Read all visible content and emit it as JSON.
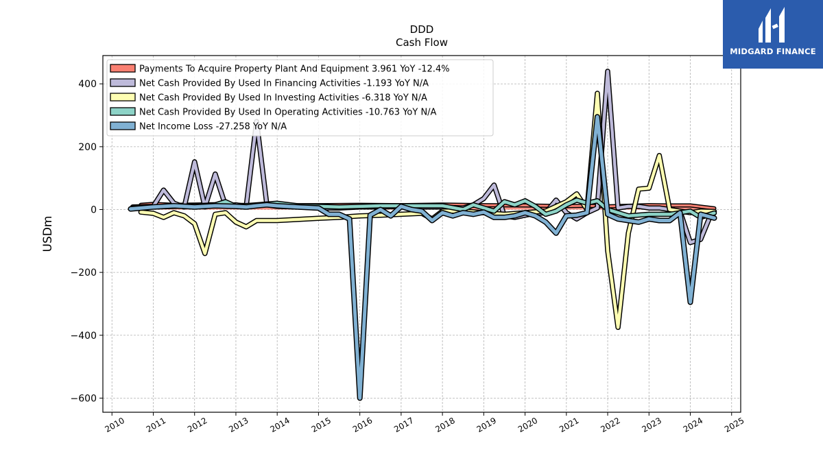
{
  "logo": {
    "name": "MIDGARD FINANCE",
    "bg": "#2b5cad"
  },
  "chart_data": {
    "type": "line",
    "title": "DDD",
    "subtitle": "Cash Flow",
    "ylabel": "USDm",
    "xlim": [
      2009.78,
      2025.22
    ],
    "ylim": [
      -645,
      490
    ],
    "yticks": [
      400,
      200,
      0,
      -200,
      -400,
      -600
    ],
    "ytick_labels": [
      "400",
      "200",
      "0",
      "−200",
      "−400",
      "−600"
    ],
    "xticks": [
      2010,
      2011,
      2012,
      2013,
      2014,
      2015,
      2016,
      2017,
      2018,
      2019,
      2020,
      2021,
      2022,
      2023,
      2024,
      2025
    ],
    "xtick_labels": [
      "2010",
      "2011",
      "2012",
      "2013",
      "2014",
      "2015",
      "2016",
      "2017",
      "2018",
      "2019",
      "2020",
      "2021",
      "2022",
      "2023",
      "2024",
      "2025"
    ],
    "grid": true,
    "legend_position": "top-left",
    "series": [
      {
        "name": "Payments To Acquire Property Plant And Equipment  3.961 YoY -12.4%",
        "color": "#fa8072",
        "width": 3,
        "fill": true,
        "x": [
          2010.7,
          2011.0,
          2011.5,
          2012.0,
          2012.5,
          2013.0,
          2013.5,
          2014.0,
          2015.0,
          2016.0,
          2017.0,
          2018.0,
          2019.0,
          2020.0,
          2021.0,
          2021.5,
          2022.0,
          2022.5,
          2023.0,
          2023.5,
          2024.0,
          2024.58
        ],
        "y": [
          15,
          18,
          15,
          16,
          17,
          15,
          14,
          14,
          14,
          15,
          14,
          16,
          14,
          13,
          11,
          12,
          10,
          12,
          14,
          13,
          13,
          4
        ]
      },
      {
        "name": "Net Cash Provided By Used In Financing Activities  -1.193 YoY N/A",
        "color": "#bebada",
        "width": 4.5,
        "fill": false,
        "x": [
          2010.5,
          2011.0,
          2011.25,
          2011.5,
          2011.75,
          2012.0,
          2012.25,
          2012.5,
          2012.75,
          2013.0,
          2013.25,
          2013.5,
          2013.75,
          2014.0,
          2014.5,
          2015.0,
          2015.5,
          2016.0,
          2016.5,
          2017.0,
          2017.5,
          2018.0,
          2018.5,
          2018.75,
          2019.0,
          2019.25,
          2019.5,
          2019.75,
          2020.0,
          2020.25,
          2020.5,
          2020.75,
          2021.0,
          2021.25,
          2021.5,
          2021.75,
          2022.0,
          2022.25,
          2022.5,
          2022.75,
          2023.0,
          2023.25,
          2023.5,
          2023.75,
          2024.0,
          2024.25,
          2024.5
        ],
        "y": [
          8,
          10,
          62,
          20,
          8,
          152,
          8,
          113,
          12,
          15,
          10,
          280,
          15,
          10,
          8,
          5,
          5,
          8,
          8,
          10,
          8,
          8,
          5,
          15,
          35,
          78,
          -20,
          -25,
          -18,
          -12,
          -10,
          30,
          -10,
          -30,
          -10,
          5,
          440,
          5,
          10,
          10,
          5,
          5,
          0,
          -5,
          -105,
          -95,
          -15
        ]
      },
      {
        "name": "Net Cash Provided By Used In Investing Activities  -6.318 YoY N/A",
        "color": "#ffffb3",
        "width": 4.5,
        "fill": false,
        "x": [
          2010.7,
          2011.0,
          2011.25,
          2011.5,
          2011.75,
          2012.0,
          2012.25,
          2012.5,
          2012.75,
          2013.0,
          2013.25,
          2013.5,
          2013.75,
          2014.0,
          2015.0,
          2015.5,
          2016.0,
          2016.5,
          2017.0,
          2017.5,
          2017.75,
          2018.0,
          2018.5,
          2019.0,
          2019.5,
          2020.0,
          2020.5,
          2021.0,
          2021.25,
          2021.5,
          2021.75,
          2022.0,
          2022.25,
          2022.5,
          2022.75,
          2023.0,
          2023.25,
          2023.5,
          2023.75,
          2024.0,
          2024.25,
          2024.58
        ],
        "y": [
          -8,
          -12,
          -25,
          -10,
          -20,
          -45,
          -140,
          -15,
          -10,
          -40,
          -55,
          -35,
          -35,
          -35,
          -28,
          -25,
          -20,
          -18,
          -15,
          -12,
          -30,
          -5,
          -5,
          -10,
          -15,
          -10,
          -5,
          25,
          50,
          0,
          370,
          -130,
          -375,
          -75,
          65,
          68,
          172,
          0,
          -5,
          -10,
          -5,
          -6
        ]
      },
      {
        "name": "Net Cash Provided By Used In Operating Activities  -10.763 YoY N/A",
        "color": "#8dd3c7",
        "width": 4.5,
        "fill": false,
        "x": [
          2010.5,
          2011.0,
          2011.5,
          2012.0,
          2012.5,
          2012.75,
          2013.0,
          2013.5,
          2014.0,
          2014.5,
          2015.0,
          2015.5,
          2016.0,
          2016.5,
          2017.0,
          2017.5,
          2018.0,
          2018.5,
          2018.75,
          2019.0,
          2019.25,
          2019.5,
          2019.75,
          2020.0,
          2020.25,
          2020.5,
          2020.75,
          2021.0,
          2021.25,
          2021.5,
          2021.75,
          2022.0,
          2022.5,
          2023.0,
          2023.5,
          2024.0,
          2024.25,
          2024.58
        ],
        "y": [
          5,
          8,
          10,
          12,
          15,
          25,
          10,
          15,
          20,
          12,
          10,
          8,
          10,
          12,
          12,
          12,
          12,
          0,
          15,
          5,
          -5,
          25,
          15,
          28,
          10,
          -15,
          -5,
          15,
          30,
          20,
          28,
          0,
          -20,
          -15,
          -15,
          -5,
          -25,
          -11
        ]
      },
      {
        "name": "Net Income Loss  -27.258 YoY N/A",
        "color": "#80b1d3",
        "width": 5,
        "fill": false,
        "x": [
          2010.45,
          2011.0,
          2011.5,
          2012.0,
          2012.5,
          2013.0,
          2013.25,
          2013.5,
          2013.75,
          2014.0,
          2014.5,
          2015.0,
          2015.25,
          2015.5,
          2015.75,
          2016.0,
          2016.25,
          2016.5,
          2016.75,
          2017.0,
          2017.25,
          2017.5,
          2017.75,
          2018.0,
          2018.25,
          2018.5,
          2018.75,
          2019.0,
          2019.25,
          2019.5,
          2019.75,
          2020.0,
          2020.25,
          2020.5,
          2020.75,
          2021.0,
          2021.25,
          2021.5,
          2021.75,
          2022.0,
          2022.25,
          2022.5,
          2022.75,
          2023.0,
          2023.25,
          2023.5,
          2023.75,
          2024.0,
          2024.25,
          2024.58
        ],
        "y": [
          2,
          8,
          12,
          8,
          12,
          10,
          8,
          12,
          15,
          12,
          8,
          5,
          -15,
          -15,
          -30,
          -600,
          -18,
          0,
          -20,
          10,
          0,
          -5,
          -35,
          -10,
          -20,
          -10,
          -15,
          -8,
          -25,
          -25,
          -20,
          -10,
          -20,
          -40,
          -75,
          -20,
          -18,
          -10,
          295,
          -15,
          -30,
          -35,
          -40,
          -30,
          -35,
          -35,
          -10,
          -295,
          -15,
          -27
        ]
      }
    ]
  }
}
